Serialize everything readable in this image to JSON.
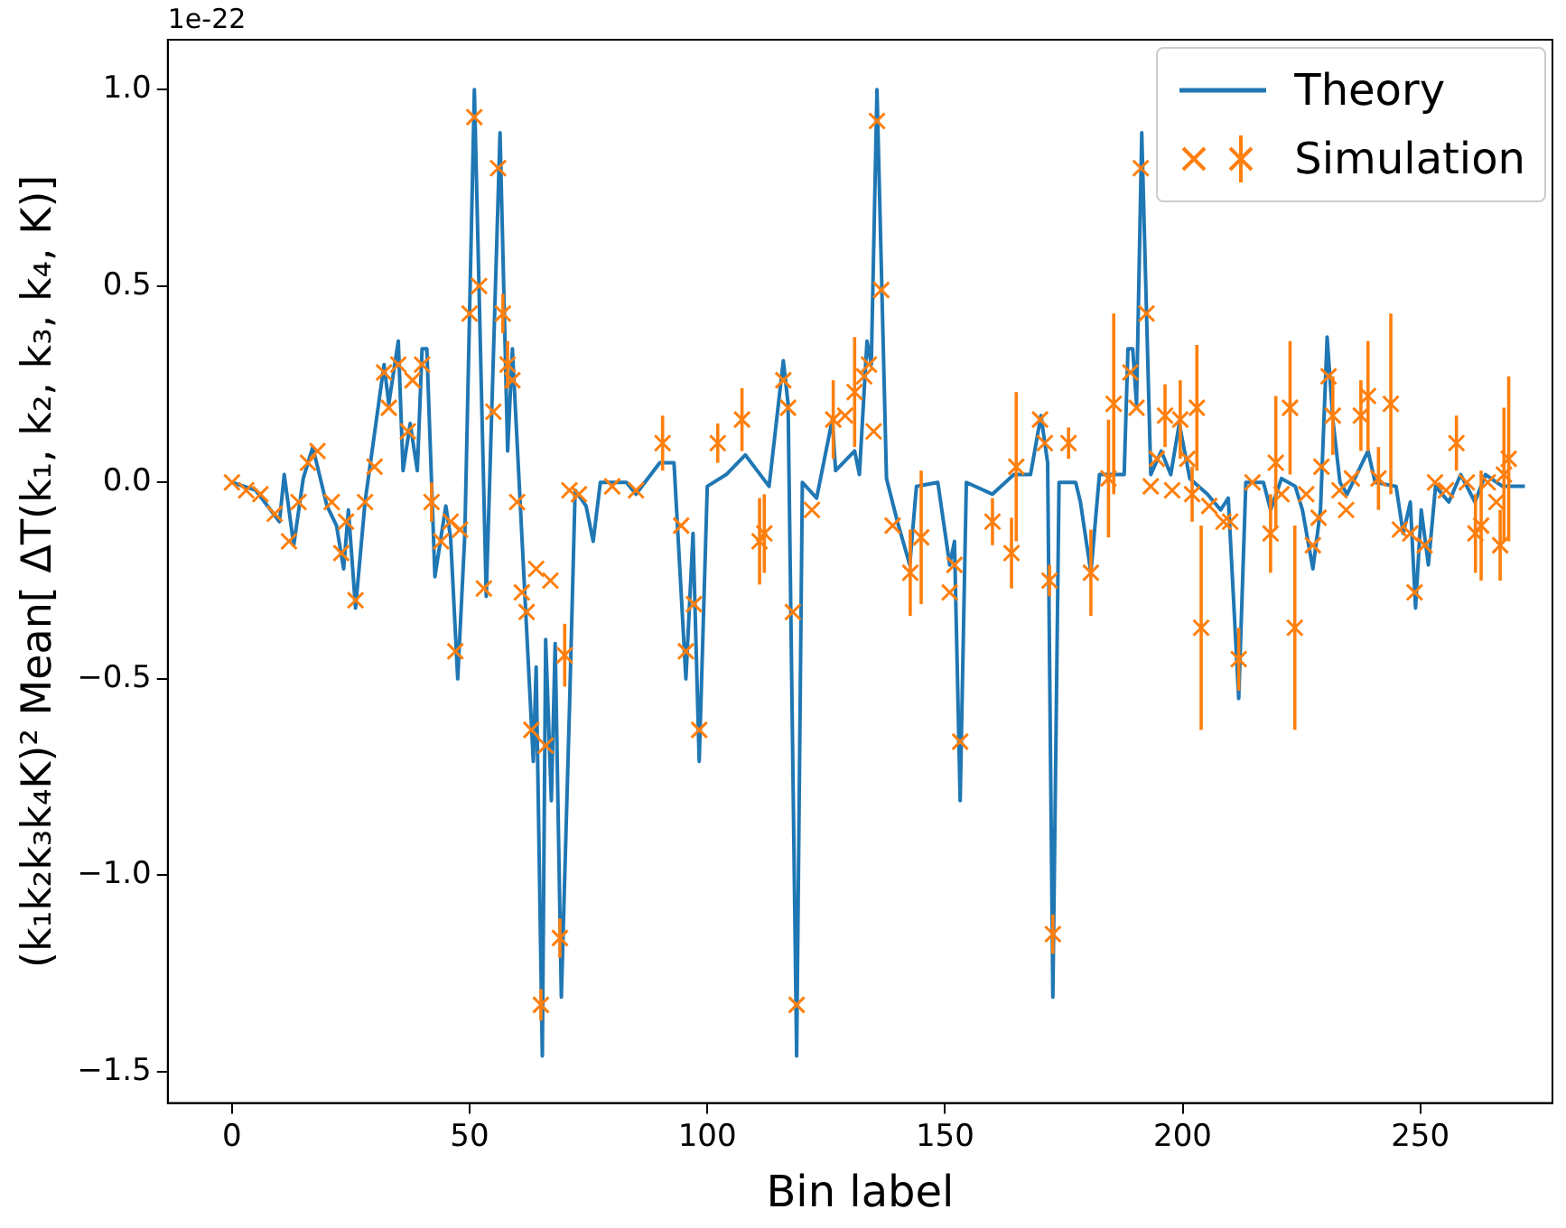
{
  "chart_data": {
    "type": "line",
    "xlabel": "Bin label",
    "ylabel": "(k₁k₂k₃k₄K)² Mean[ ΔT(k₁, k₂, k₃, k₄, K)]",
    "annotations": [
      "1e-22"
    ],
    "xlim": [
      -13.5,
      277.8
    ],
    "xticks": [
      0,
      50,
      100,
      150,
      200,
      250
    ],
    "ylim": [
      -1.58,
      1.127
    ],
    "yticks": [
      {
        "value": -1.5,
        "label": "−1.5"
      },
      {
        "value": -1.0,
        "label": "−1.0"
      },
      {
        "value": -0.5,
        "label": "−0.5"
      },
      {
        "value": 0,
        "label": "0.0"
      },
      {
        "value": 0.5,
        "label": "0.5"
      },
      {
        "value": 1.0,
        "label": "1.0"
      }
    ],
    "legend": "top right",
    "series": [
      {
        "name": "Theory",
        "color": "#1f77b4",
        "marker": "none",
        "x": [
          0,
          5,
          10,
          11,
          13,
          15,
          17,
          20,
          22,
          23.5,
          24.5,
          26,
          28,
          32,
          33,
          35,
          36,
          37.5,
          39,
          40,
          41,
          42.7,
          45,
          46,
          47.5,
          49,
          51,
          53.5,
          56.4,
          58,
          59,
          63.4,
          64,
          65.3,
          66,
          67.2,
          68,
          69.3,
          71,
          72.2,
          74.5,
          76,
          77.5,
          83,
          85,
          90,
          93,
          95.5,
          97,
          98.3,
          100,
          104,
          108,
          113,
          116,
          117,
          118.8,
          120,
          123,
          126.3,
          127,
          131,
          132,
          133.6,
          134.5,
          135.7,
          137.7,
          140,
          142.6,
          144,
          148.5,
          151,
          152,
          153.2,
          154.5,
          160,
          164.5,
          168,
          170.2,
          171.6,
          172.7,
          174,
          177.5,
          178.5,
          180.7,
          182.5,
          187.7,
          188.5,
          189.5,
          190.3,
          191.4,
          193.3,
          195.5,
          197.5,
          199.3,
          201.5,
          205.2,
          208,
          209.6,
          211.8,
          213.3,
          217,
          218.5,
          220.8,
          223.7,
          225.2,
          227.4,
          229,
          230.4,
          231.6,
          233.1,
          234.6,
          239,
          240.5,
          244.9,
          246.4,
          247.9,
          249,
          250.2,
          251.7,
          253.2,
          256,
          258.5,
          261.5,
          263.7,
          267.3,
          272
        ],
        "values": [
          0,
          -0.02,
          -0.1,
          0.02,
          -0.16,
          0.01,
          0.09,
          -0.06,
          -0.11,
          -0.22,
          -0.07,
          -0.32,
          -0.05,
          0.3,
          0.2,
          0.36,
          0.03,
          0.15,
          0.03,
          0.34,
          0.34,
          -0.24,
          -0.06,
          -0.14,
          -0.5,
          -0.13,
          1.0,
          -0.29,
          0.89,
          0.08,
          0.34,
          -0.71,
          -0.47,
          -1.46,
          -0.4,
          -0.81,
          -0.41,
          -1.31,
          -0.58,
          -0.02,
          -0.06,
          -0.15,
          0,
          0,
          -0.03,
          0.05,
          0.05,
          -0.5,
          -0.13,
          -0.71,
          -0.01,
          0.02,
          0.07,
          -0.01,
          0.31,
          0.2,
          -1.46,
          0,
          -0.04,
          0.16,
          0.03,
          0.08,
          0.02,
          0.36,
          0.3,
          1.0,
          0.01,
          -0.1,
          -0.21,
          -0.01,
          0,
          -0.21,
          -0.15,
          -0.81,
          0,
          -0.03,
          0.02,
          0.02,
          0.17,
          0.05,
          -1.31,
          0,
          0,
          -0.05,
          -0.23,
          0.02,
          0.02,
          0.34,
          0.34,
          0.2,
          0.89,
          0.02,
          0.08,
          0.02,
          0.15,
          0.01,
          -0.03,
          -0.07,
          -0.04,
          -0.55,
          0,
          0,
          -0.07,
          0.01,
          -0.01,
          -0.07,
          -0.22,
          -0.07,
          0.37,
          0.16,
          0,
          -0.03,
          0.08,
          0,
          -0.01,
          -0.13,
          -0.05,
          -0.32,
          -0.07,
          -0.21,
          -0.01,
          -0.05,
          0.02,
          -0.05,
          0.02,
          -0.01,
          -0.01
        ]
      },
      {
        "name": "Simulation",
        "type": "scatter",
        "color": "#ff7f0e",
        "marker": "cross",
        "x": [
          0,
          3,
          6,
          9,
          12,
          14,
          16,
          18,
          21,
          23,
          24,
          26,
          28,
          30,
          32,
          33,
          35,
          37,
          38,
          40,
          42,
          44,
          46,
          47,
          48,
          50,
          51,
          52,
          53,
          55,
          56,
          57,
          58,
          59,
          60,
          61,
          62,
          63,
          64,
          65,
          66,
          67,
          69,
          70,
          71,
          73,
          80,
          85,
          90.6,
          94.5,
          95.5,
          97.2,
          98.3,
          102.2,
          107.3,
          111,
          112,
          116,
          117,
          118,
          118.8,
          122,
          126.5,
          129,
          131,
          133,
          134,
          135,
          135.7,
          136.6,
          139,
          142.7,
          145,
          151,
          152,
          153.2,
          160,
          164,
          165,
          170,
          171,
          172,
          172.7,
          176,
          180.7,
          184.4,
          185.5,
          189,
          190.3,
          191.2,
          192.4,
          193.3,
          194.6,
          196.3,
          197.8,
          199.5,
          201,
          202,
          203,
          203.9,
          205.6,
          208.6,
          210,
          211.8,
          214.7,
          218.5,
          219.6,
          220.8,
          222.6,
          223.6,
          226,
          227.4,
          228.6,
          229.2,
          230.7,
          231.6,
          233,
          234.4,
          235.6,
          237.5,
          239,
          241.2,
          243.8,
          245.7,
          247.9,
          248.8,
          250.9,
          253.1,
          255.4,
          257.6,
          259.8,
          261.6,
          262.8,
          264.2,
          266,
          266.8,
          267.6,
          268.6
        ],
        "values": [
          0,
          -0.02,
          -0.03,
          -0.08,
          -0.15,
          -0.05,
          0.05,
          0.08,
          -0.05,
          -0.18,
          -0.1,
          -0.3,
          -0.05,
          0.04,
          0.28,
          0.19,
          0.3,
          0.13,
          0.26,
          0.3,
          -0.05,
          -0.15,
          -0.1,
          -0.43,
          -0.12,
          0.43,
          0.93,
          0.5,
          -0.27,
          0.18,
          0.8,
          0.43,
          0.3,
          0.26,
          -0.05,
          -0.28,
          -0.33,
          -0.63,
          -0.22,
          -1.33,
          -0.67,
          -0.25,
          -1.16,
          -0.44,
          -0.02,
          -0.03,
          -0.01,
          -0.02,
          0.1,
          -0.11,
          -0.43,
          -0.31,
          -0.63,
          0.1,
          0.16,
          -0.15,
          -0.13,
          0.26,
          0.19,
          -0.33,
          -1.33,
          -0.07,
          0.16,
          0.17,
          0.23,
          0.27,
          0.3,
          0.13,
          0.92,
          0.49,
          -0.11,
          -0.23,
          -0.14,
          -0.28,
          -0.21,
          -0.66,
          -0.1,
          -0.18,
          0.04,
          0.16,
          0.1,
          -0.25,
          -1.15,
          0.1,
          -0.23,
          0.01,
          0.2,
          0.28,
          0.19,
          0.8,
          0.43,
          -0.01,
          0.06,
          0.17,
          -0.02,
          0.16,
          0.06,
          -0.03,
          0.19,
          -0.37,
          -0.06,
          -0.1,
          -0.1,
          -0.45,
          0,
          -0.13,
          0.05,
          -0.03,
          0.19,
          -0.37,
          -0.03,
          -0.16,
          -0.09,
          0.04,
          0.27,
          0.17,
          -0.02,
          -0.07,
          0.01,
          0.17,
          0.22,
          0.01,
          0.2,
          -0.12,
          -0.13,
          -0.28,
          -0.16,
          0,
          -0.02,
          0.1,
          0,
          -0.13,
          -0.11,
          0,
          -0.05,
          -0.16,
          0.02,
          0.06
        ],
        "errors": [
          null,
          null,
          null,
          null,
          null,
          null,
          null,
          null,
          null,
          null,
          null,
          null,
          null,
          null,
          null,
          null,
          null,
          null,
          null,
          null,
          0.05,
          null,
          null,
          null,
          null,
          null,
          null,
          null,
          null,
          null,
          null,
          0.05,
          0.06,
          null,
          null,
          null,
          null,
          null,
          null,
          0.04,
          null,
          null,
          0.05,
          0.08,
          null,
          null,
          null,
          null,
          0.07,
          null,
          null,
          null,
          null,
          0.05,
          0.08,
          0.11,
          0.1,
          null,
          null,
          null,
          null,
          null,
          0.1,
          null,
          0.14,
          null,
          null,
          null,
          null,
          null,
          null,
          0.11,
          0.17,
          null,
          null,
          null,
          0.06,
          0.09,
          0.19,
          null,
          null,
          0.04,
          0.05,
          0.04,
          0.11,
          0.15,
          0.23,
          null,
          null,
          null,
          null,
          null,
          null,
          0.08,
          null,
          0.1,
          null,
          0.07,
          0.16,
          0.26,
          null,
          null,
          null,
          0.08,
          null,
          0.1,
          0.17,
          null,
          0.17,
          0.26,
          null,
          null,
          null,
          null,
          null,
          0.1,
          null,
          null,
          null,
          0.09,
          0.14,
          0.08,
          0.23,
          null,
          null,
          null,
          null,
          null,
          null,
          0.07,
          null,
          0.1,
          0.14,
          null,
          null,
          0.09,
          0.17,
          0.21
        ]
      }
    ]
  }
}
